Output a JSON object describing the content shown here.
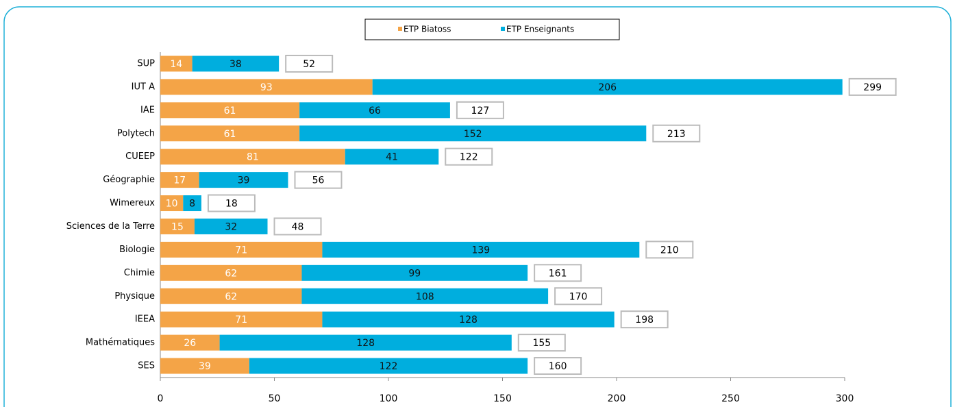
{
  "chart_data": {
    "type": "stacked-bar-horizontal",
    "categories": [
      "SUP",
      "IUT A",
      "IAE",
      "Polytech",
      "CUEEP",
      "Géographie",
      "Wimereux",
      "Sciences de la Terre",
      "Biologie",
      "Chimie",
      "Physique",
      "IEEA",
      "Mathématiques",
      "SES"
    ],
    "series": [
      {
        "name": "ETP Biatoss",
        "color": "#f4a447",
        "values": [
          14,
          93,
          61,
          61,
          81,
          17,
          10,
          15,
          71,
          62,
          62,
          71,
          26,
          39
        ]
      },
      {
        "name": "ETP Enseignants",
        "color": "#00aede",
        "values": [
          38,
          206,
          66,
          152,
          41,
          39,
          8,
          32,
          139,
          99,
          108,
          128,
          128,
          122
        ]
      }
    ],
    "totals": [
      52,
      299,
      127,
      213,
      122,
      56,
      18,
      48,
      210,
      161,
      170,
      198,
      155,
      160
    ],
    "xlim": [
      0,
      300
    ],
    "xticks": [
      0,
      50,
      100,
      150,
      200,
      250,
      300
    ],
    "legend": "top"
  }
}
